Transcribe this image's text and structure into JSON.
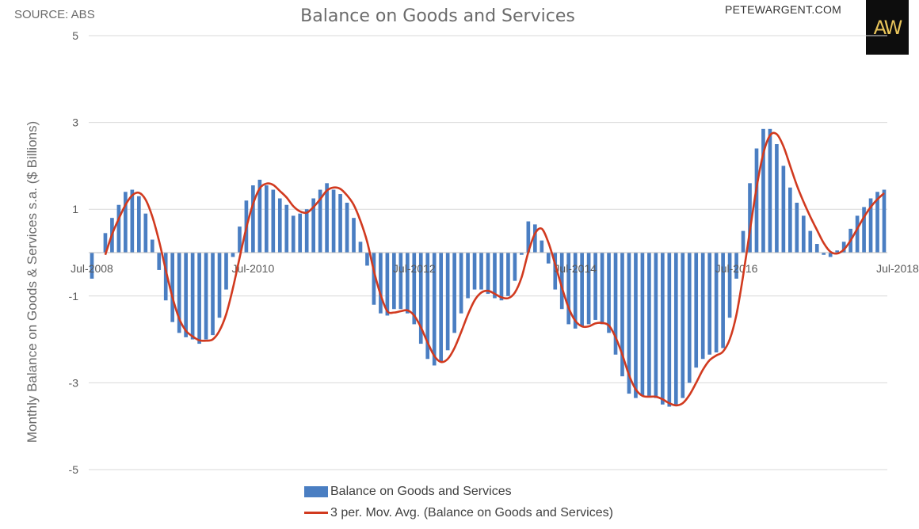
{
  "header": {
    "source": "SOURCE: ABS",
    "title": "Balance on Goods and Services",
    "site": "PETEWARGENT.COM",
    "logo": "AW"
  },
  "colors": {
    "bar": "#4a7ec2",
    "line": "#d13a1f",
    "grid": "#d9d9d9",
    "axis_text": "#595959"
  },
  "chart_data": {
    "type": "bar",
    "title": "Balance on Goods and Services",
    "ylabel": "Monthly Balance on Goods & Services s.a. ($ Billions)",
    "xlabel": "",
    "ylim": [
      -5,
      5
    ],
    "yticks": [
      5,
      3,
      1,
      -1,
      -3,
      -5
    ],
    "xtick_labels": [
      {
        "label": "Jul-2008",
        "index": 0
      },
      {
        "label": "Jul-2010",
        "index": 24
      },
      {
        "label": "Jul-2012",
        "index": 48
      },
      {
        "label": "Jul-2014",
        "index": 72
      },
      {
        "label": "Jul-2016",
        "index": 96
      },
      {
        "label": "Jul-2018",
        "index": 120
      }
    ],
    "legend": [
      "Balance on Goods and Services",
      "3 per. Mov. Avg. (Balance on Goods and Services)"
    ],
    "series": [
      {
        "name": "Balance on Goods and Services",
        "type": "bar",
        "values": [
          -0.6,
          0.0,
          0.45,
          0.8,
          1.1,
          1.4,
          1.45,
          1.3,
          0.9,
          0.3,
          -0.4,
          -1.1,
          -1.6,
          -1.85,
          -1.95,
          -2.0,
          -2.1,
          -2.0,
          -1.9,
          -1.5,
          -0.85,
          -0.1,
          0.6,
          1.2,
          1.55,
          1.68,
          1.55,
          1.45,
          1.25,
          1.1,
          0.85,
          0.9,
          1.0,
          1.25,
          1.45,
          1.6,
          1.45,
          1.35,
          1.15,
          0.8,
          0.25,
          -0.3,
          -1.2,
          -1.4,
          -1.45,
          -1.3,
          -1.3,
          -1.4,
          -1.65,
          -2.1,
          -2.45,
          -2.6,
          -2.5,
          -2.25,
          -1.85,
          -1.4,
          -1.05,
          -0.85,
          -0.85,
          -0.95,
          -1.05,
          -1.1,
          -1.0,
          -0.65,
          -0.05,
          0.72,
          0.65,
          0.28,
          -0.25,
          -0.85,
          -1.3,
          -1.65,
          -1.75,
          -1.7,
          -1.65,
          -1.55,
          -1.65,
          -1.85,
          -2.35,
          -2.85,
          -3.25,
          -3.35,
          -3.3,
          -3.3,
          -3.35,
          -3.5,
          -3.55,
          -3.5,
          -3.35,
          -3.0,
          -2.65,
          -2.45,
          -2.35,
          -2.3,
          -2.2,
          -1.5,
          -0.6,
          0.5,
          1.6,
          2.4,
          2.85,
          2.85,
          2.5,
          2.0,
          1.5,
          1.15,
          0.85,
          0.5,
          0.2,
          -0.05,
          -0.1,
          0.05,
          0.25,
          0.55,
          0.85,
          1.05,
          1.25,
          1.4,
          1.45
        ]
      },
      {
        "name": "3 per. Mov. Avg. (Balance on Goods and Services)",
        "type": "line",
        "values": [
          null,
          null,
          -0.05,
          0.42,
          0.78,
          1.1,
          1.32,
          1.38,
          1.22,
          0.83,
          0.27,
          -0.4,
          -1.03,
          -1.52,
          -1.8,
          -1.93,
          -2.02,
          -2.03,
          -2.0,
          -1.8,
          -1.42,
          -0.82,
          -0.12,
          0.57,
          1.12,
          1.48,
          1.59,
          1.56,
          1.42,
          1.27,
          1.07,
          0.95,
          0.92,
          1.05,
          1.23,
          1.43,
          1.5,
          1.47,
          1.32,
          1.1,
          0.73,
          0.25,
          -0.42,
          -0.97,
          -1.35,
          -1.38,
          -1.35,
          -1.33,
          -1.45,
          -1.72,
          -2.07,
          -2.38,
          -2.52,
          -2.45,
          -2.2,
          -1.83,
          -1.43,
          -1.1,
          -0.92,
          -0.88,
          -0.95,
          -1.03,
          -1.05,
          -0.92,
          -0.57,
          0.01,
          0.44,
          0.55,
          0.23,
          -0.27,
          -0.8,
          -1.27,
          -1.57,
          -1.7,
          -1.7,
          -1.63,
          -1.62,
          -1.68,
          -1.95,
          -2.35,
          -2.82,
          -3.15,
          -3.3,
          -3.32,
          -3.32,
          -3.38,
          -3.47,
          -3.52,
          -3.47,
          -3.28,
          -3.0,
          -2.7,
          -2.48,
          -2.37,
          -2.28,
          -2.0,
          -1.43,
          -0.53,
          0.5,
          1.5,
          2.28,
          2.7,
          2.73,
          2.45,
          2.0,
          1.55,
          1.17,
          0.83,
          0.52,
          0.22,
          0.02,
          -0.02,
          0.07,
          0.28,
          0.55,
          0.82,
          1.05,
          1.23,
          1.37
        ]
      }
    ]
  }
}
